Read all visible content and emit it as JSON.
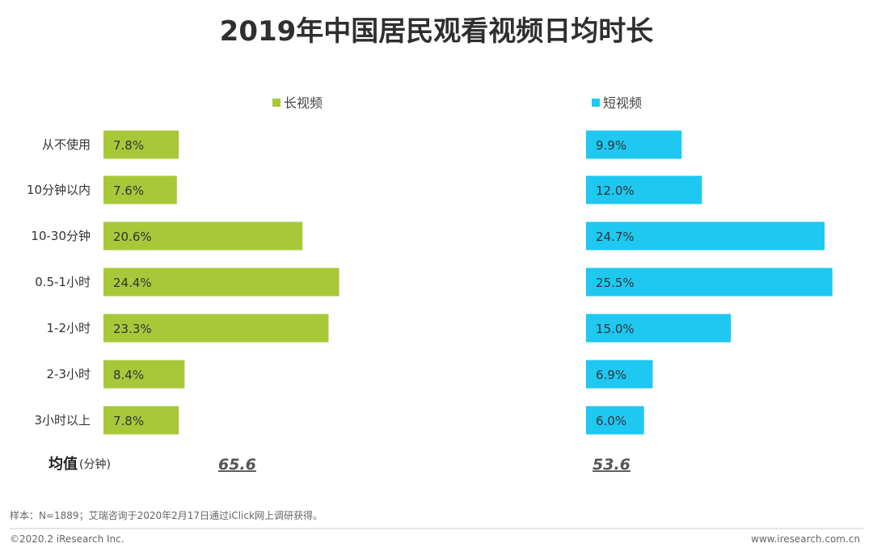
{
  "chart_data": {
    "type": "bar",
    "title": "2019年中国居民观看视频日均时长",
    "categories": [
      "从不使用",
      "10分钟以内",
      "10-30分钟",
      "0.5-1小时",
      "1-2小时",
      "2-3小时",
      "3小时以上"
    ],
    "series": [
      {
        "name": "长视频",
        "color": "#a8c83a",
        "values": [
          7.8,
          7.6,
          20.6,
          24.4,
          23.3,
          8.4,
          7.8
        ],
        "labels": [
          "7.8%",
          "7.6%",
          "20.6%",
          "24.4%",
          "23.3%",
          "8.4%",
          "7.8%"
        ],
        "mean": "65.6"
      },
      {
        "name": "短视频",
        "color": "#1ec8f0",
        "values": [
          9.9,
          12.0,
          24.7,
          25.5,
          15.0,
          6.9,
          6.0
        ],
        "labels": [
          "9.9%",
          "12.0%",
          "24.7%",
          "25.5%",
          "15.0%",
          "6.9%",
          "6.0%"
        ],
        "mean": "53.6"
      }
    ],
    "mean_label": "均值",
    "mean_unit": "(分钟)",
    "legend_position": "top",
    "grid": false
  },
  "footnote": "样本：N=1889；艾瑞咨询于2020年2月17日通过iClick网上调研获得。",
  "footer_left": "©2020.2 iResearch Inc.",
  "footer_right": "www.iresearch.com.cn"
}
